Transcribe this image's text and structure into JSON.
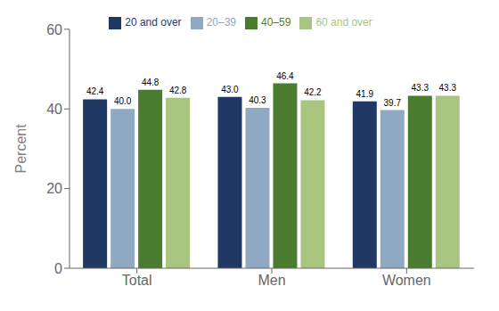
{
  "chart_data": {
    "type": "bar",
    "categories": [
      "Total",
      "Men",
      "Women"
    ],
    "series": [
      {
        "name": "20 and over",
        "color": "#1f3864",
        "values": [
          42.4,
          43.0,
          41.9
        ],
        "value_labels": [
          "42.4",
          "43.0",
          "41.9"
        ]
      },
      {
        "name": "20–39",
        "color": "#8ea9c1",
        "values": [
          40.0,
          40.3,
          39.7
        ],
        "value_labels": [
          "40.0",
          "40.3",
          "39.7"
        ]
      },
      {
        "name": "40–59",
        "color": "#4a7c2f",
        "values": [
          44.8,
          46.4,
          43.3
        ],
        "value_labels": [
          "44.8",
          "46.4",
          "43.3"
        ]
      },
      {
        "name": "60 and over",
        "color": "#a9c47f",
        "values": [
          42.8,
          42.2,
          43.3
        ],
        "value_labels": [
          "42.8",
          "42.2",
          "43.3"
        ]
      }
    ],
    "ylabel": "Percent",
    "ylim": [
      0,
      60
    ],
    "yticks": [
      0,
      20,
      40,
      60
    ],
    "grid": false,
    "legend": "top",
    "data_labels": true
  }
}
